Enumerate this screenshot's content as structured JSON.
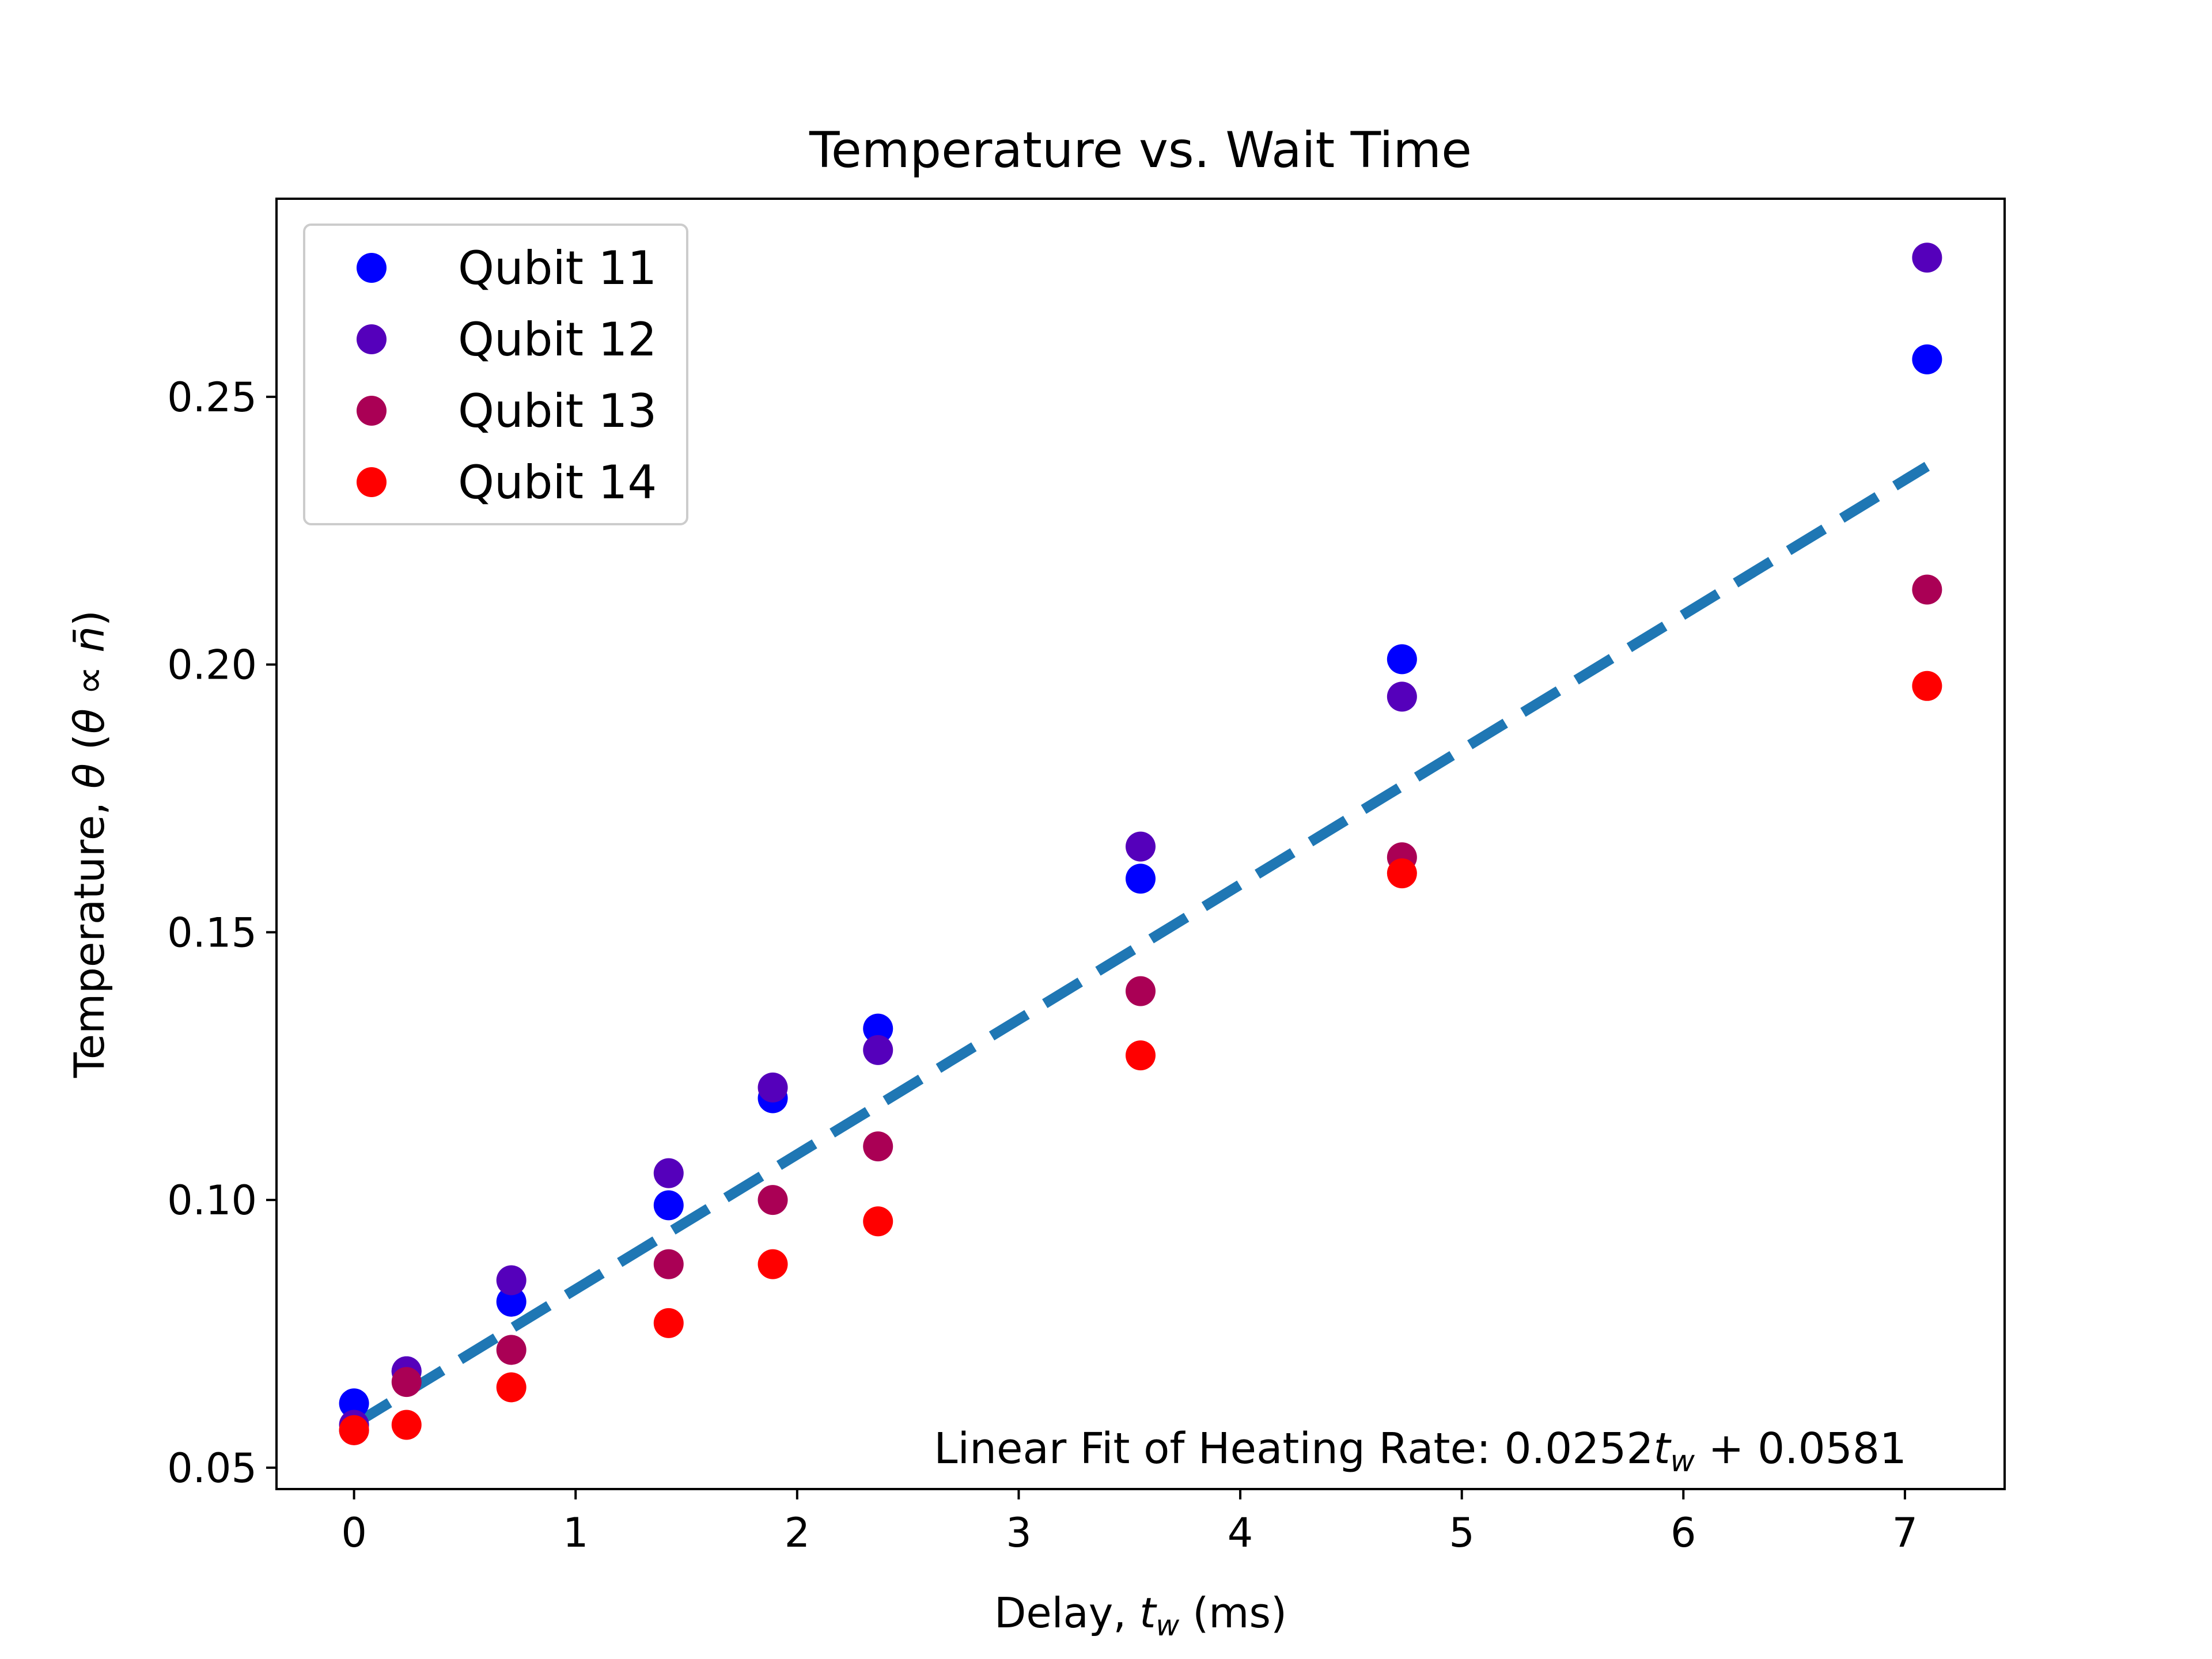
{
  "chart_data": {
    "type": "scatter",
    "title": "Temperature vs. Wait Time",
    "xlabel": {
      "prefix": "Delay, ",
      "var": "t",
      "sub": "w",
      "suffix": " (ms)"
    },
    "ylabel": {
      "prefix": "Temperature, ",
      "var": "θ",
      "paren_open": " (",
      "rel": "θ ∝ ",
      "nbar": "n̄",
      "paren_close": ")"
    },
    "xlim": [
      -0.35,
      7.45
    ],
    "ylim": [
      0.046,
      0.287
    ],
    "xticks": [
      0,
      1,
      2,
      3,
      4,
      5,
      6,
      7
    ],
    "xtick_labels": [
      "0",
      "1",
      "2",
      "3",
      "4",
      "5",
      "6",
      "7"
    ],
    "yticks": [
      0.05,
      0.1,
      0.15,
      0.2,
      0.25
    ],
    "ytick_labels": [
      "0.05",
      "0.10",
      "0.15",
      "0.20",
      "0.25"
    ],
    "grid": false,
    "legend_position": "top-left",
    "x": [
      0.0,
      0.237,
      0.71,
      1.42,
      1.89,
      2.365,
      3.55,
      4.73,
      7.1
    ],
    "series": [
      {
        "name": "Qubit 11",
        "color": "#0000ff",
        "values": [
          0.062,
          0.068,
          0.081,
          0.099,
          0.119,
          0.132,
          0.16,
          0.201,
          0.257
        ]
      },
      {
        "name": "Qubit 12",
        "color": "#5500bb",
        "values": [
          0.058,
          0.068,
          0.085,
          0.105,
          0.121,
          0.128,
          0.166,
          0.194,
          0.276
        ]
      },
      {
        "name": "Qubit 13",
        "color": "#aa0055",
        "values": [
          0.057,
          0.066,
          0.072,
          0.088,
          0.1,
          0.11,
          0.139,
          0.164,
          0.214
        ]
      },
      {
        "name": "Qubit 14",
        "color": "#ff0000",
        "values": [
          0.057,
          0.058,
          0.065,
          0.077,
          0.088,
          0.096,
          0.127,
          0.161,
          0.196
        ]
      }
    ],
    "fit": {
      "slope": 0.0252,
      "intercept": 0.0581,
      "x_range": [
        0,
        7.1
      ],
      "color": "#1f77b4",
      "style": "dashed"
    },
    "annotation": {
      "prefix": "Linear Fit of Heating Rate: 0.0252",
      "var": "t",
      "sub": "w",
      "suffix": " + 0.0581"
    }
  }
}
